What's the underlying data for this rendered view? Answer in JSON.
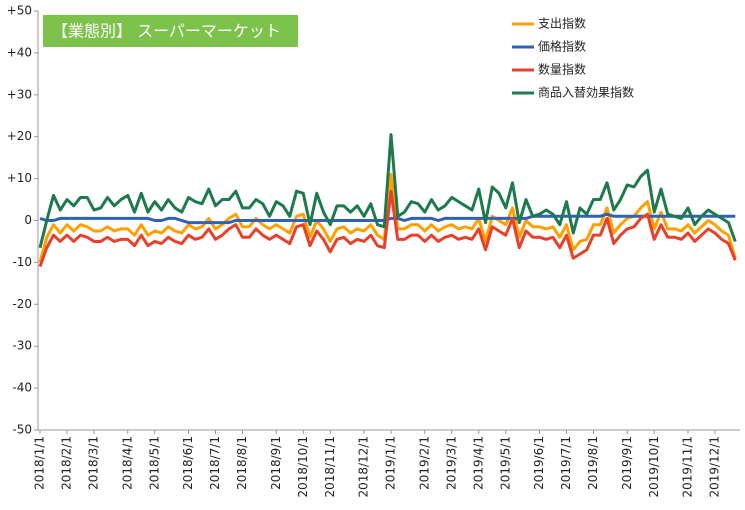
{
  "chart_data": {
    "type": "line",
    "title": "【業態別】 スーパーマーケット",
    "categories": [
      "2018/1/1",
      null,
      null,
      null,
      "2018/2/1",
      null,
      null,
      null,
      "2018/3/1",
      null,
      null,
      null,
      null,
      "2018/4/1",
      null,
      null,
      null,
      "2018/5/1",
      null,
      null,
      null,
      null,
      "2018/6/1",
      null,
      null,
      null,
      "2018/7/1",
      null,
      null,
      null,
      "2018/8/1",
      null,
      null,
      null,
      null,
      "2018/9/1",
      null,
      null,
      null,
      "2018/10/1",
      null,
      null,
      null,
      "2018/11/1",
      null,
      null,
      null,
      null,
      "2018/12/1",
      null,
      null,
      null,
      "2019/1/1",
      null,
      null,
      null,
      null,
      "2019/2/1",
      null,
      null,
      null,
      "2019/3/1",
      null,
      null,
      null,
      "2019/4/1",
      null,
      null,
      null,
      "2019/5/1",
      null,
      null,
      null,
      null,
      "2019/6/1",
      null,
      null,
      null,
      "2019/7/1",
      null,
      null,
      null,
      "2019/8/1",
      null,
      null,
      null,
      null,
      "2019/9/1",
      null,
      null,
      null,
      "2019/10/1",
      null,
      null,
      null,
      null,
      "2019/11/1",
      null,
      null,
      null,
      "2019/12/1",
      null,
      null,
      null
    ],
    "series": [
      {
        "name": "支出指数",
        "color": "#ffa000",
        "values": [
          -10,
          -4,
          -1,
          -3,
          -1,
          -2.5,
          -1,
          -1.5,
          -2.5,
          -2.5,
          -1.5,
          -2.5,
          -2,
          -2,
          -3.5,
          -1,
          -3.5,
          -2.5,
          -3,
          -1.5,
          -2.5,
          -3,
          -1,
          -2,
          -1.5,
          0.5,
          -2,
          -1,
          0.5,
          1.5,
          -1.5,
          -1.5,
          0.5,
          -1,
          -2,
          -1,
          -2,
          -3,
          1,
          1.5,
          -4,
          0,
          -2,
          -5,
          -2,
          -1.5,
          -3,
          -2,
          -2.5,
          -1,
          -3.5,
          -4.5,
          11,
          -2,
          -2,
          -1,
          -1,
          -2.5,
          -1,
          -2.5,
          -1.5,
          -1,
          -2,
          -1.5,
          -2,
          0.5,
          -5,
          1,
          0,
          -1,
          3,
          -4,
          0,
          -1.5,
          -1.5,
          -2,
          -1.5,
          -4,
          -1,
          -7,
          -5,
          -4.5,
          -1,
          -1,
          3,
          -3,
          -1,
          0.5,
          1,
          3,
          4.5,
          -2,
          2,
          -2,
          -2,
          -2.5,
          -1,
          -3,
          -1.5,
          0,
          -1,
          -2.5,
          -3.5,
          -9
        ]
      },
      {
        "name": "価格指数",
        "color": "#2e62b8",
        "values": [
          0.5,
          0,
          0,
          0.5,
          0.5,
          0.5,
          0.5,
          0.5,
          0.5,
          0.5,
          0.5,
          0.5,
          0.5,
          0.5,
          0.5,
          0.5,
          0.5,
          0,
          0,
          0.5,
          0.5,
          0,
          -0.5,
          -0.5,
          -0.5,
          -0.5,
          -0.5,
          -0.5,
          -0.5,
          0,
          0,
          0,
          0,
          0,
          0,
          0,
          0,
          0,
          0,
          0,
          0,
          0,
          0,
          0,
          0,
          0,
          0,
          0,
          0,
          0,
          0,
          0,
          0.5,
          0.5,
          0,
          0.5,
          0.5,
          0.5,
          0.5,
          0,
          0.5,
          0.5,
          0.5,
          0.5,
          0.5,
          0.5,
          0.5,
          0.5,
          0.5,
          0.5,
          0.5,
          0.5,
          0.5,
          1,
          1,
          1,
          1,
          1,
          1,
          1,
          1,
          1,
          1,
          1,
          1.5,
          1,
          1,
          1,
          1,
          1,
          1,
          1,
          1,
          1,
          1,
          1,
          1,
          1,
          1,
          1,
          1,
          1,
          1,
          1
        ]
      },
      {
        "name": "数量指数",
        "color": "#e8402a",
        "values": [
          -11,
          -6.5,
          -3.5,
          -5,
          -3.5,
          -5,
          -3.5,
          -4,
          -5,
          -5,
          -4,
          -5,
          -4.5,
          -4.5,
          -6,
          -3.5,
          -6,
          -5,
          -5.5,
          -4,
          -5,
          -5.5,
          -3.5,
          -4.5,
          -4,
          -2,
          -4.5,
          -3.5,
          -2,
          -1,
          -4,
          -4,
          -2,
          -3.5,
          -4.5,
          -3.5,
          -4.5,
          -5.5,
          -1.5,
          -1,
          -6,
          -2.5,
          -4.5,
          -7.5,
          -4.5,
          -4,
          -5.5,
          -4.5,
          -5,
          -3.5,
          -6,
          -6.5,
          7,
          -4.5,
          -4.5,
          -3.5,
          -3.5,
          -5,
          -3.5,
          -5,
          -4,
          -3.5,
          -4.5,
          -4,
          -4.5,
          -2,
          -7,
          -1.5,
          -2.5,
          -3.5,
          0.5,
          -6.5,
          -2.5,
          -4,
          -4,
          -4.5,
          -4,
          -6.5,
          -3.5,
          -9,
          -8,
          -7,
          -3.5,
          -3.5,
          0.5,
          -5.5,
          -3.5,
          -2,
          -1.5,
          0.5,
          1.5,
          -4.5,
          -1,
          -4,
          -4,
          -4.5,
          -3,
          -5,
          -3.5,
          -2,
          -3,
          -4.5,
          -5.5,
          -9.5
        ]
      },
      {
        "name": "商品入替効果指数",
        "color": "#1e7a4c",
        "values": [
          -6.5,
          0,
          6,
          2.5,
          5,
          3.5,
          5.5,
          5.5,
          2.5,
          3,
          5.5,
          3.5,
          5,
          6,
          2,
          6.5,
          2,
          4.5,
          2.5,
          5,
          3,
          2,
          5.5,
          4.5,
          4,
          7.5,
          3.5,
          5,
          5,
          7,
          3,
          3,
          5,
          4,
          1,
          4.5,
          3.5,
          1,
          7,
          6.5,
          -1,
          6.5,
          2,
          -1,
          3.5,
          3.5,
          2,
          3.5,
          1,
          4,
          -1,
          -1.5,
          20.5,
          1,
          2,
          4.5,
          4,
          2,
          5,
          2.5,
          3.5,
          5.5,
          4.5,
          3.5,
          2.5,
          7.5,
          -0.5,
          8,
          6.5,
          3,
          9,
          -0.5,
          5,
          1,
          1.5,
          2.5,
          1.5,
          -1,
          4.5,
          -3,
          3,
          1.5,
          5,
          5,
          9,
          2.5,
          5,
          8.5,
          8,
          10.5,
          12,
          2,
          7.5,
          1.5,
          1,
          0.5,
          3,
          -1,
          1,
          2.5,
          1.5,
          0.5,
          -0.5,
          -5
        ]
      }
    ],
    "ylim": [
      -50,
      50
    ],
    "yticks": [
      {
        "value": 50,
        "label": "+50"
      },
      {
        "value": 40,
        "label": "+40"
      },
      {
        "value": 30,
        "label": "+30"
      },
      {
        "value": 20,
        "label": "+20"
      },
      {
        "value": 10,
        "label": "+10"
      },
      0,
      -10,
      -20,
      -30,
      -40,
      -50
    ],
    "grid": false,
    "legend": "top-right"
  }
}
